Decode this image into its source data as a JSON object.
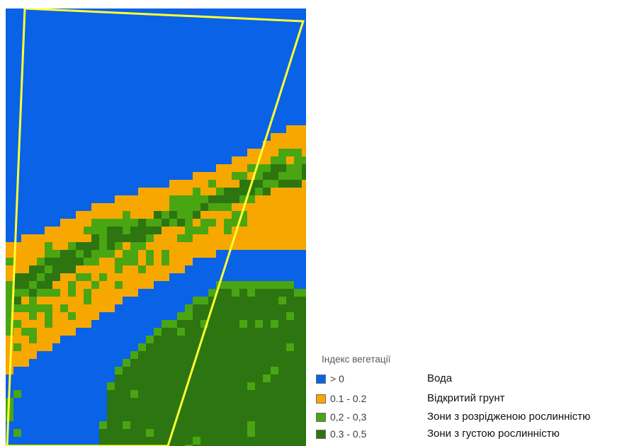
{
  "map": {
    "colors": {
      "water": "#0a62e6",
      "bare_soil": "#f7a800",
      "sparse_vegetation": "#4aa512",
      "dense_vegetation": "#2c7510",
      "boundary": "#ffff33"
    }
  },
  "legend": {
    "title": "Індекс вегетації",
    "items": [
      {
        "range": "> 0",
        "label": "Вода",
        "color": "#0a62e6"
      },
      {
        "range": "0.1 - 0.2",
        "label": "Відкритий грунт",
        "color": "#f7a800"
      },
      {
        "range": "0,2 - 0,3",
        "label": "Зони з розрідженою рослинністю",
        "color": "#4aa512"
      },
      {
        "range": "0.3 - 0.5",
        "label": "Зони з густою рослинністю",
        "color": "#2c7510"
      }
    ]
  }
}
